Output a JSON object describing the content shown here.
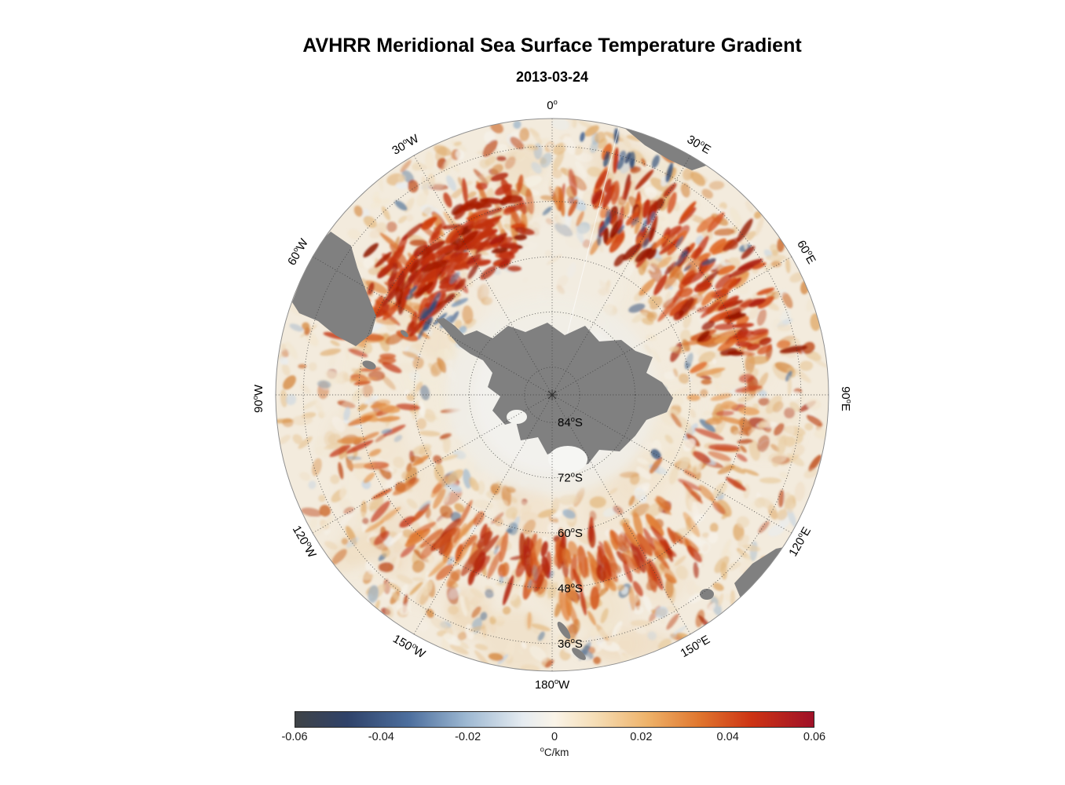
{
  "header": {
    "title": "AVHRR Meridional Sea Surface Temperature Gradient",
    "subtitle": "2013-03-24"
  },
  "chart_data": {
    "type": "heatmap",
    "title": "AVHRR Meridional Sea Surface Temperature Gradient",
    "date": "2013-03-24",
    "field": "Meridional sea surface temperature gradient",
    "units": "°C/km",
    "projection": "South polar stereographic, 0° at top, east clockwise, outer edge near 30°S",
    "value_range": [
      -0.06,
      0.06
    ],
    "colorbar": {
      "ticks": [
        -0.06,
        -0.04,
        -0.02,
        0,
        0.02,
        0.04,
        0.06
      ],
      "tick_labels": [
        "-0.06",
        "-0.04",
        "-0.02",
        "0",
        "0.02",
        "0.04",
        "0.06"
      ],
      "unit_label": "°C/km",
      "colormap_stops": [
        {
          "pos": 0.0,
          "color": "#3f4347"
        },
        {
          "pos": 0.1,
          "color": "#2f4269"
        },
        {
          "pos": 0.22,
          "color": "#4d6f9e"
        },
        {
          "pos": 0.33,
          "color": "#9db8d2"
        },
        {
          "pos": 0.44,
          "color": "#e6ecf1"
        },
        {
          "pos": 0.5,
          "color": "#faf4e8"
        },
        {
          "pos": 0.58,
          "color": "#f5ddb5"
        },
        {
          "pos": 0.68,
          "color": "#eeb269"
        },
        {
          "pos": 0.78,
          "color": "#e0762e"
        },
        {
          "pos": 0.88,
          "color": "#cd3414"
        },
        {
          "pos": 1.0,
          "color": "#9f1128"
        }
      ]
    },
    "graticule": {
      "latitude_labels": [
        {
          "label": "84°S",
          "radius_fraction": 0.1
        },
        {
          "label": "72°S",
          "radius_fraction": 0.3
        },
        {
          "label": "60°S",
          "radius_fraction": 0.5
        },
        {
          "label": "48°S",
          "radius_fraction": 0.7
        },
        {
          "label": "36°S",
          "radius_fraction": 0.9
        }
      ],
      "longitude_labels": [
        {
          "label": "0°",
          "azimuth_deg": 0
        },
        {
          "label": "30°E",
          "azimuth_deg": 30
        },
        {
          "label": "60°E",
          "azimuth_deg": 60
        },
        {
          "label": "90°E",
          "azimuth_deg": 90
        },
        {
          "label": "120°E",
          "azimuth_deg": 120
        },
        {
          "label": "150°E",
          "azimuth_deg": 150
        },
        {
          "label": "180°W",
          "azimuth_deg": 180
        },
        {
          "label": "150°W",
          "azimuth_deg": 210
        },
        {
          "label": "120°W",
          "azimuth_deg": 240
        },
        {
          "label": "90°W",
          "azimuth_deg": 270
        },
        {
          "label": "60°W",
          "azimuth_deg": 300
        },
        {
          "label": "30°W",
          "azimuth_deg": 330
        }
      ]
    },
    "land_masses": [
      "Antarctica",
      "South America",
      "Africa",
      "Australia",
      "Tasmania",
      "New Zealand"
    ]
  },
  "colors": {
    "background": "#ffffff",
    "land": "#808080",
    "sea_base": "#f3ebdd",
    "text": "#000000"
  }
}
